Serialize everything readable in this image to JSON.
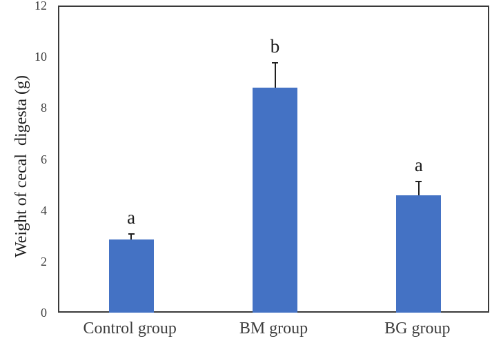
{
  "figure": {
    "background": "#ffffff",
    "bar_color": "#4472c4",
    "plot_border_color": "#3a3a3a",
    "axis_text_color": "#3d3d3d",
    "error_bar_color": "#1f1f1f",
    "letter_color": "#1c1c1c"
  },
  "chart_data": {
    "type": "bar",
    "title": "",
    "ylabel": "Weight of cecal  digesta (g)",
    "xlabel": "",
    "categories": [
      "Control group",
      "BM group",
      "BG group"
    ],
    "values": [
      2.9,
      8.85,
      4.65
    ],
    "error_plus": [
      0.25,
      1.0,
      0.55
    ],
    "sig_letters": [
      "a",
      "b",
      "a"
    ],
    "ylim": [
      0,
      12
    ],
    "yticks": [
      0,
      2,
      4,
      6,
      8,
      10,
      12
    ],
    "grid": false,
    "legend": false,
    "bar_orientation": "vertical",
    "error_bar_direction": "plus-only"
  }
}
